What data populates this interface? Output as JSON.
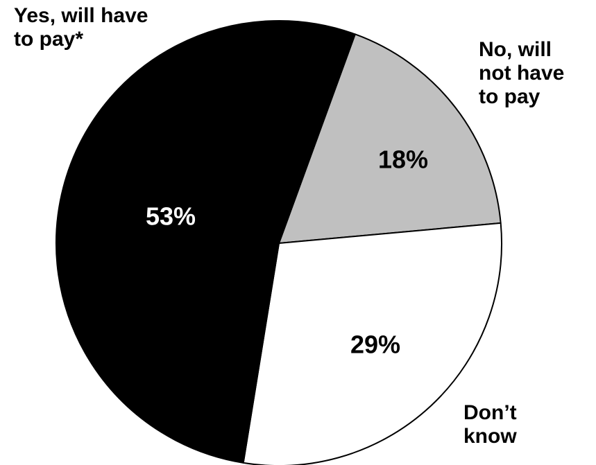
{
  "chart_data": {
    "type": "pie",
    "title": "",
    "slices": [
      {
        "label_lines": [
          "Yes, will have",
          "to pay*"
        ],
        "value": 53,
        "value_label": "53%",
        "color": "#000000",
        "value_label_color": "#ffffff"
      },
      {
        "label_lines": [
          "No, will",
          "not have",
          "to pay"
        ],
        "value": 18,
        "value_label": "18%",
        "color": "#c0c0c0",
        "value_label_color": "#000000"
      },
      {
        "label_lines": [
          "Don’t",
          "know"
        ],
        "value": 29,
        "value_label": "29%",
        "color": "#ffffff",
        "value_label_color": "#000000"
      }
    ],
    "outline_color": "#000000"
  }
}
